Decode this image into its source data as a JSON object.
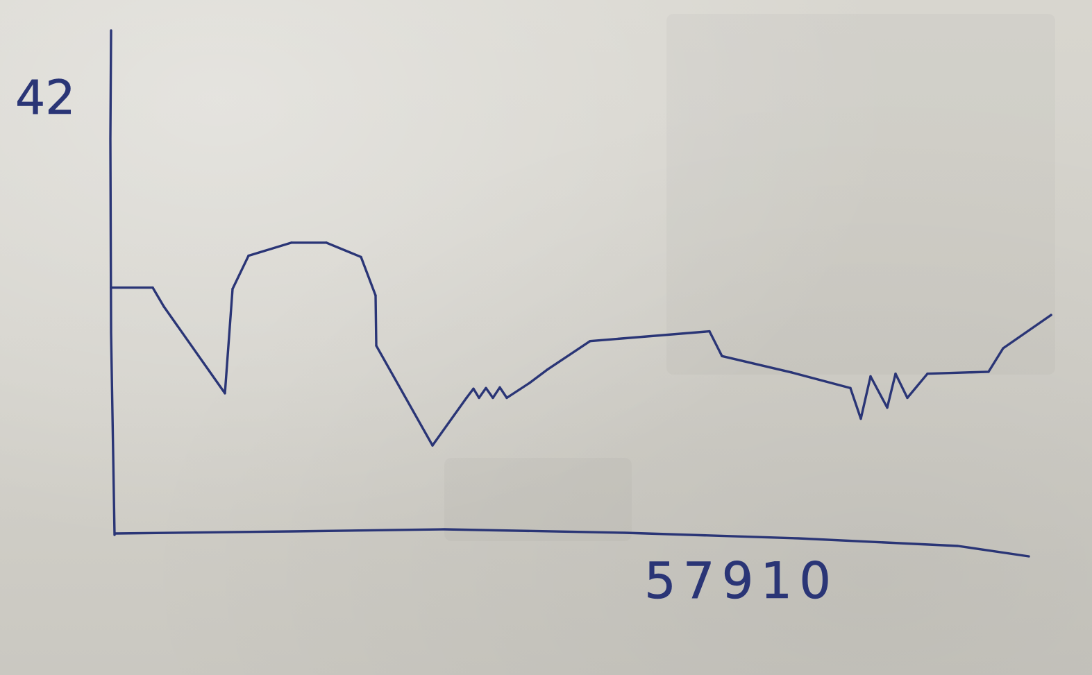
{
  "chart_data": {
    "type": "line",
    "title": "",
    "xlabel": "",
    "ylabel": "",
    "y_tick_labels": [
      "42"
    ],
    "x_tick_labels": [
      "57910"
    ],
    "ink_color": "#2a3576",
    "paper_color": "#d4d2cb",
    "grid": false,
    "legend": "none",
    "series": [
      {
        "values": [
          37.7,
          37.7,
          34.8,
          21.5,
          37.5,
          42.6,
          44.6,
          44.6,
          42.4,
          36.5,
          28.8,
          13.5,
          20.8,
          22.2,
          20.8,
          22.3,
          20.8,
          22.4,
          20.8,
          23.1,
          25.1,
          29.5,
          31.0,
          27.2,
          24.7,
          22.3,
          17.6,
          24.1,
          19.3,
          24.5,
          20.8,
          24.5,
          24.8,
          28.4,
          33.5
        ]
      }
    ]
  }
}
